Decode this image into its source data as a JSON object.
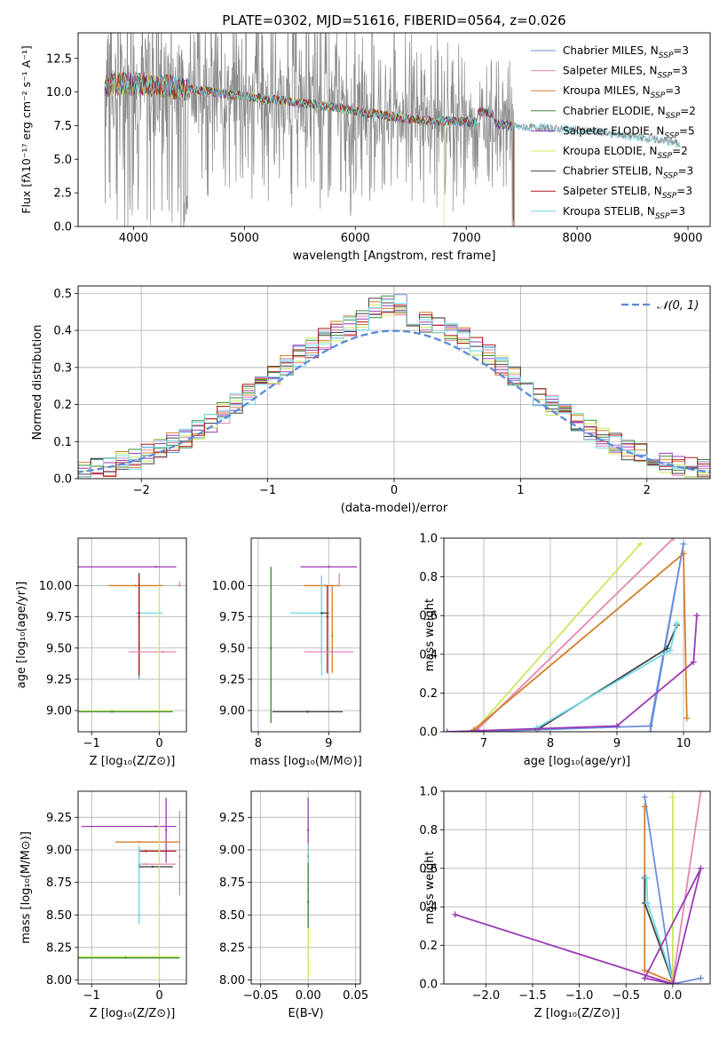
{
  "figure_title": "PLATE=0302, MJD=51616, FIBERID=0564, z=0.026",
  "legend_entries": [
    {
      "label": "Chabrier MILES, N",
      "sub": "SSP",
      "tail": "=3",
      "color": "#6a8fdc"
    },
    {
      "label": "Salpeter MILES, N",
      "sub": "SSP",
      "tail": "=3",
      "color": "#e486b2"
    },
    {
      "label": "Kroupa MILES, N",
      "sub": "SSP",
      "tail": "=3",
      "color": "#d37f29"
    },
    {
      "label": "Chabrier ELODIE, N",
      "sub": "SSP",
      "tail": "=2",
      "color": "#3a8a3a"
    },
    {
      "label": "Salpeter ELODIE, N",
      "sub": "SSP",
      "tail": "=5",
      "color": "#9b3bb5"
    },
    {
      "label": "Kroupa ELODIE, N",
      "sub": "SSP",
      "tail": "=2",
      "color": "#c9e85e"
    },
    {
      "label": "Chabrier STELIB, N",
      "sub": "SSP",
      "tail": "=3",
      "color": "#444444"
    },
    {
      "label": "Salpeter STELIB, N",
      "sub": "SSP",
      "tail": "=3",
      "color": "#b01818"
    },
    {
      "label": "Kroupa STELIB, N",
      "sub": "SSP",
      "tail": "=3",
      "color": "#6fdce8"
    }
  ],
  "chart_data": [
    {
      "id": "spectrum",
      "type": "line",
      "title": "PLATE=0302, MJD=51616, FIBERID=0564, z=0.026",
      "xlabel": "wavelength [Angstrom, rest frame]",
      "ylabel": "Flux [fλ10⁻¹⁷ erg cm⁻² s⁻¹ A⁻¹]",
      "xlim": [
        3500,
        9200
      ],
      "ylim": [
        0,
        14.4
      ],
      "xticks": [
        4000,
        5000,
        6000,
        7000,
        8000,
        9000
      ],
      "yticks": [
        0.0,
        2.5,
        5.0,
        7.5,
        10.0,
        12.5
      ],
      "ytick_labels": [
        "0.0",
        "2.5",
        "5.0",
        "7.5",
        "10.0",
        "12.5"
      ],
      "grid": false,
      "legend_position": "upper right",
      "continuum_x": [
        3740,
        3800,
        4000,
        4200,
        4500,
        5000,
        5400,
        5800,
        6000,
        6300,
        6600,
        7000,
        7300,
        7500,
        8000,
        8500,
        9000
      ],
      "continuum_y": [
        10.3,
        10.6,
        10.6,
        10.5,
        10.2,
        9.7,
        9.3,
        8.9,
        8.6,
        8.2,
        7.9,
        7.8,
        7.6,
        7.4,
        7.2,
        6.7,
        6.1
      ],
      "model_end_x": [
        7430,
        7430,
        7430,
        7430,
        7430,
        6800,
        7430,
        7430,
        8930
      ]
    },
    {
      "id": "residuals",
      "type": "histogram",
      "xlabel": "(data-model)/error",
      "ylabel": "Normed distribution",
      "xlim": [
        -2.5,
        2.5
      ],
      "ylim": [
        0,
        0.52
      ],
      "xticks": [
        -2,
        -1,
        0,
        1,
        2
      ],
      "xtick_labels": [
        "−2",
        "−1",
        "0",
        "1",
        "2"
      ],
      "yticks": [
        0.0,
        0.1,
        0.2,
        0.3,
        0.4,
        0.5
      ],
      "ytick_labels": [
        "0.0",
        "0.1",
        "0.2",
        "0.3",
        "0.4",
        "0.5"
      ],
      "grid": true,
      "legend": [
        {
          "label": "𝒩(0, 1)",
          "style": "dashed",
          "color": "#5b8bd9"
        }
      ],
      "legend_position": "upper right",
      "bin_width": 0.1
    },
    {
      "id": "age_vs_z",
      "type": "errorbar",
      "xlabel": "Z [log₁₀(Z/Z⊙)]",
      "ylabel": "age [log₁₀(age/yr)]",
      "xlim": [
        -1.2,
        0.4
      ],
      "ylim": [
        8.83,
        10.38
      ],
      "xticks": [
        -1,
        0
      ],
      "xtick_labels": [
        "−1",
        "0"
      ],
      "yticks": [
        9.0,
        9.25,
        9.5,
        9.75,
        10.0
      ],
      "ytick_labels": [
        "9.00",
        "9.25",
        "9.50",
        "9.75",
        "10.00"
      ],
      "grid": true,
      "points": [
        {
          "x": -0.05,
          "xerr": [
            1.3,
            0.3
          ],
          "y": 10.15,
          "yerr": [
            0.0,
            0.0
          ],
          "color": "#9b3bb5"
        },
        {
          "x": 0.3,
          "xerr": [
            0.0,
            0.0
          ],
          "y": 10.0,
          "yerr": [
            0.0,
            0.03
          ],
          "color": "#e486b2"
        },
        {
          "x": -0.35,
          "xerr": [
            0.4,
            0.4
          ],
          "y": 10.0,
          "yerr": [
            0.0,
            0.0
          ],
          "color": "#d37f29"
        },
        {
          "x": -0.3,
          "xerr": [
            0.0,
            0.0
          ],
          "y": 9.75,
          "yerr": [
            0.5,
            0.35
          ],
          "color": "#6a8fdc"
        },
        {
          "x": -0.3,
          "xerr": [
            0.0,
            0.0
          ],
          "y": 9.75,
          "yerr": [
            0.45,
            0.35
          ],
          "color": "#444444"
        },
        {
          "x": -0.3,
          "xerr": [
            0.05,
            0.35
          ],
          "y": 9.78,
          "yerr": [
            0.5,
            0.3
          ],
          "color": "#6fdce8"
        },
        {
          "x": -0.3,
          "xerr": [
            0.0,
            0.0
          ],
          "y": 9.78,
          "yerr": [
            0.5,
            0.3
          ],
          "color": "#b01818"
        },
        {
          "x": 0.05,
          "xerr": [
            0.5,
            0.2
          ],
          "y": 9.47,
          "yerr": [
            0.0,
            0.0
          ],
          "color": "#e486b2"
        },
        {
          "x": 0.0,
          "xerr": [
            0.0,
            0.0
          ],
          "y": 9.5,
          "yerr": [
            0.65,
            0.5
          ],
          "color": "#c9e85e"
        },
        {
          "x": -0.7,
          "xerr": [
            0.6,
            0.9
          ],
          "y": 9.0,
          "yerr": [
            0.0,
            0.0
          ],
          "color": "#c9e85e"
        },
        {
          "x": -0.7,
          "xerr": [
            0.5,
            0.9
          ],
          "y": 8.99,
          "yerr": [
            0.0,
            0.0
          ],
          "color": "#3a8a3a"
        }
      ]
    },
    {
      "id": "age_vs_mass",
      "type": "errorbar",
      "xlabel": "mass [log₁₀(M/M⊙)]",
      "ylabel": "",
      "xlim": [
        7.9,
        9.45
      ],
      "ylim": [
        8.83,
        10.38
      ],
      "xticks": [
        8,
        9
      ],
      "xtick_labels": [
        "8",
        "9"
      ],
      "yticks": [
        9.0,
        9.25,
        9.5,
        9.75,
        10.0
      ],
      "ytick_labels": [
        "9.00",
        "9.25",
        "9.50",
        "9.75",
        "10.00"
      ],
      "grid": true,
      "points": [
        {
          "x": 9.0,
          "xerr": [
            0.4,
            0.4
          ],
          "y": 10.15,
          "yerr": [
            0.0,
            0.0
          ],
          "color": "#9b3bb5"
        },
        {
          "x": 8.95,
          "xerr": [
            0.3,
            0.2
          ],
          "y": 10.0,
          "yerr": [
            0.0,
            0.0
          ],
          "color": "#d37f29"
        },
        {
          "x": 9.15,
          "xerr": [
            0.0,
            0.0
          ],
          "y": 10.0,
          "yerr": [
            0.0,
            0.1
          ],
          "color": "#e486b2"
        },
        {
          "x": 8.9,
          "xerr": [
            0.0,
            0.0
          ],
          "y": 9.78,
          "yerr": [
            0.4,
            0.3
          ],
          "color": "#6a8fdc"
        },
        {
          "x": 8.9,
          "xerr": [
            0.45,
            0.0
          ],
          "y": 9.78,
          "yerr": [
            0.5,
            0.3
          ],
          "color": "#6fdce8"
        },
        {
          "x": 8.9,
          "xerr": [
            0.0,
            0.1
          ],
          "y": 9.78,
          "yerr": [
            0.0,
            0.0
          ],
          "color": "#444444"
        },
        {
          "x": 8.98,
          "xerr": [
            0.0,
            0.0
          ],
          "y": 9.75,
          "yerr": [
            0.45,
            0.25
          ],
          "color": "#b01818"
        },
        {
          "x": 9.05,
          "xerr": [
            0.0,
            0.0
          ],
          "y": 9.6,
          "yerr": [
            0.3,
            0.4
          ],
          "color": "#d37f29"
        },
        {
          "x": 9.05,
          "xerr": [
            0.4,
            0.3
          ],
          "y": 9.47,
          "yerr": [
            0.0,
            0.0
          ],
          "color": "#e486b2"
        },
        {
          "x": 8.18,
          "xerr": [
            0.0,
            0.0
          ],
          "y": 9.5,
          "yerr": [
            0.6,
            0.65
          ],
          "color": "#c9e85e"
        },
        {
          "x": 8.18,
          "xerr": [
            0.0,
            0.0
          ],
          "y": 9.5,
          "yerr": [
            0.6,
            0.65
          ],
          "color": "#3a8a3a"
        },
        {
          "x": 8.7,
          "xerr": [
            0.5,
            0.5
          ],
          "y": 8.99,
          "yerr": [
            0.0,
            0.0
          ],
          "color": "#444444"
        }
      ]
    },
    {
      "id": "weight_vs_age",
      "type": "line",
      "xlabel": "age  [log₁₀(age/yr)]",
      "ylabel": "mass weight",
      "xlim": [
        6.4,
        10.4
      ],
      "ylim": [
        0,
        1.0
      ],
      "xticks": [
        7,
        8,
        9,
        10
      ],
      "xtick_labels": [
        "7",
        "8",
        "9",
        "10"
      ],
      "yticks": [
        0.0,
        0.2,
        0.4,
        0.6,
        0.8,
        1.0
      ],
      "ytick_labels": [
        "0.0",
        "0.2",
        "0.4",
        "0.6",
        "0.8",
        "1.0"
      ],
      "grid": true,
      "series": [
        {
          "color": "#c9e85e",
          "x": [
            6.9,
            9.35
          ],
          "y": [
            0.02,
            0.97
          ]
        },
        {
          "color": "#e486b2",
          "x": [
            6.9,
            9.85
          ],
          "y": [
            0.01,
            1.0
          ]
        },
        {
          "color": "#d37f29",
          "x": [
            6.85,
            10.0,
            10.05
          ],
          "y": [
            0.01,
            0.92,
            0.07
          ]
        },
        {
          "color": "#6a8fdc",
          "x": [
            6.9,
            9.5,
            10.0,
            9.5
          ],
          "y": [
            0.0,
            0.03,
            0.97,
            0.0
          ]
        },
        {
          "color": "#444444",
          "x": [
            7.8,
            9.75,
            9.9
          ],
          "y": [
            0.01,
            0.43,
            0.55
          ]
        },
        {
          "color": "#6fdce8",
          "x": [
            7.8,
            9.8,
            9.9
          ],
          "y": [
            0.02,
            0.42,
            0.56
          ]
        },
        {
          "color": "#9b3bb5",
          "x": [
            6.45,
            9.0,
            10.15,
            10.2
          ],
          "y": [
            0.0,
            0.03,
            0.36,
            0.6
          ]
        }
      ]
    },
    {
      "id": "mass_vs_z",
      "type": "errorbar",
      "xlabel": "Z [log₁₀(Z/Z⊙)]",
      "ylabel": "mass [log₁₀(M/M⊙)]",
      "xlim": [
        -1.2,
        0.4
      ],
      "ylim": [
        7.97,
        9.45
      ],
      "xticks": [
        -1,
        0
      ],
      "xtick_labels": [
        "−1",
        "0"
      ],
      "yticks": [
        8.0,
        8.25,
        8.5,
        8.75,
        9.0,
        9.25
      ],
      "ytick_labels": [
        "8.00",
        "8.25",
        "8.50",
        "8.75",
        "9.00",
        "9.25"
      ],
      "grid": true,
      "points": [
        {
          "x": -0.05,
          "xerr": [
            1.1,
            0.3
          ],
          "y": 9.18,
          "yerr": [
            0.0,
            0.0
          ],
          "color": "#9b3bb5"
        },
        {
          "x": 0.1,
          "xerr": [
            0.0,
            0.0
          ],
          "y": 9.15,
          "yerr": [
            0.25,
            0.25
          ],
          "color": "#9b3bb5"
        },
        {
          "x": -0.3,
          "xerr": [
            0.35,
            0.6
          ],
          "y": 9.06,
          "yerr": [
            0.0,
            0.0
          ],
          "color": "#d37f29"
        },
        {
          "x": 0.3,
          "xerr": [
            0.0,
            0.0
          ],
          "y": 8.95,
          "yerr": [
            0.3,
            0.35
          ],
          "color": "#e486b2"
        },
        {
          "x": -0.2,
          "xerr": [
            0.1,
            0.45
          ],
          "y": 8.99,
          "yerr": [
            0.0,
            0.0
          ],
          "color": "#b01818"
        },
        {
          "x": -0.2,
          "xerr": [
            0.1,
            0.45
          ],
          "y": 8.89,
          "yerr": [
            0.0,
            0.0
          ],
          "color": "#e486b2"
        },
        {
          "x": -0.3,
          "xerr": [
            0.0,
            0.0
          ],
          "y": 8.88,
          "yerr": [
            0.45,
            0.15
          ],
          "color": "#6a8fdc"
        },
        {
          "x": -0.3,
          "xerr": [
            0.0,
            0.0
          ],
          "y": 8.88,
          "yerr": [
            0.45,
            0.15
          ],
          "color": "#6fdce8"
        },
        {
          "x": -0.1,
          "xerr": [
            0.2,
            0.3
          ],
          "y": 8.87,
          "yerr": [
            0.0,
            0.0
          ],
          "color": "#444444"
        },
        {
          "x": 0.0,
          "xerr": [
            0.0,
            0.0
          ],
          "y": 8.6,
          "yerr": [
            0.6,
            0.6
          ],
          "color": "#c9e85e"
        },
        {
          "x": -0.5,
          "xerr": [
            0.7,
            0.8
          ],
          "y": 8.18,
          "yerr": [
            0.0,
            0.0
          ],
          "color": "#c9e85e"
        },
        {
          "x": -0.5,
          "xerr": [
            0.7,
            0.8
          ],
          "y": 8.17,
          "yerr": [
            0.0,
            0.0
          ],
          "color": "#3a8a3a"
        }
      ]
    },
    {
      "id": "mass_vs_ebv",
      "type": "errorbar",
      "xlabel": "E(B-V)",
      "ylabel": "",
      "xlim": [
        -0.06,
        0.055
      ],
      "ylim": [
        7.97,
        9.45
      ],
      "xticks": [
        -0.05,
        0.0,
        0.05
      ],
      "xtick_labels": [
        "−0.05",
        "0.00",
        "0.05"
      ],
      "yticks": [
        8.0,
        8.25,
        8.5,
        8.75,
        9.0,
        9.25
      ],
      "ytick_labels": [
        "8.00",
        "8.25",
        "8.50",
        "8.75",
        "9.00",
        "9.25"
      ],
      "grid": true,
      "points": [
        {
          "x": 0.0,
          "xerr": [
            0.0,
            0.0
          ],
          "y": 9.15,
          "yerr": [
            0.1,
            0.25
          ],
          "color": "#9b3bb5"
        },
        {
          "x": 0.0,
          "xerr": [
            0.0,
            0.0
          ],
          "y": 8.95,
          "yerr": [
            0.1,
            0.1
          ],
          "color": "#b01818"
        },
        {
          "x": 0.0,
          "xerr": [
            0.0,
            0.0
          ],
          "y": 8.7,
          "yerr": [
            0.3,
            0.35
          ],
          "color": "#6fdce8"
        },
        {
          "x": 0.0,
          "xerr": [
            0.0,
            0.0
          ],
          "y": 8.6,
          "yerr": [
            0.2,
            0.3
          ],
          "color": "#3a8a3a"
        },
        {
          "x": 0.0,
          "xerr": [
            0.0,
            0.0
          ],
          "y": 8.2,
          "yerr": [
            0.2,
            0.2
          ],
          "color": "#c9e85e"
        }
      ]
    },
    {
      "id": "weight_vs_z",
      "type": "line",
      "xlabel": "Z [log₁₀(Z/Z⊙)]",
      "ylabel": "mass weight",
      "xlim": [
        -2.45,
        0.4
      ],
      "ylim": [
        0,
        1.0
      ],
      "xticks": [
        -2.0,
        -1.5,
        -1.0,
        -0.5,
        0.0
      ],
      "xtick_labels": [
        "−2.0",
        "−1.5",
        "−1.0",
        "−0.5",
        "0.0"
      ],
      "yticks": [
        0.0,
        0.2,
        0.4,
        0.6,
        0.8,
        1.0
      ],
      "ytick_labels": [
        "0.0",
        "0.2",
        "0.4",
        "0.6",
        "0.8",
        "1.0"
      ],
      "grid": true,
      "series": [
        {
          "color": "#6a8fdc",
          "x": [
            -0.3,
            0.0,
            0.3
          ],
          "y": [
            0.97,
            0.0,
            0.03
          ]
        },
        {
          "color": "#d37f29",
          "x": [
            -0.3,
            -0.3,
            0.0
          ],
          "y": [
            0.92,
            0.07,
            0.01
          ]
        },
        {
          "color": "#444444",
          "x": [
            -0.3,
            -0.3,
            0.0
          ],
          "y": [
            0.55,
            0.42,
            0.01
          ]
        },
        {
          "color": "#6fdce8",
          "x": [
            -0.28,
            -0.27,
            0.0
          ],
          "y": [
            0.55,
            0.42,
            0.02
          ]
        },
        {
          "color": "#c9e85e",
          "x": [
            0.0,
            0.0
          ],
          "y": [
            0.97,
            0.02
          ]
        },
        {
          "color": "#e486b2",
          "x": [
            0.0,
            0.3
          ],
          "y": [
            0.01,
            1.0
          ]
        },
        {
          "color": "#9b3bb5",
          "x": [
            -2.33,
            0.0,
            0.3,
            -0.3,
            0.0
          ],
          "y": [
            0.36,
            0.0,
            0.6,
            0.03,
            0.0
          ]
        }
      ]
    }
  ]
}
